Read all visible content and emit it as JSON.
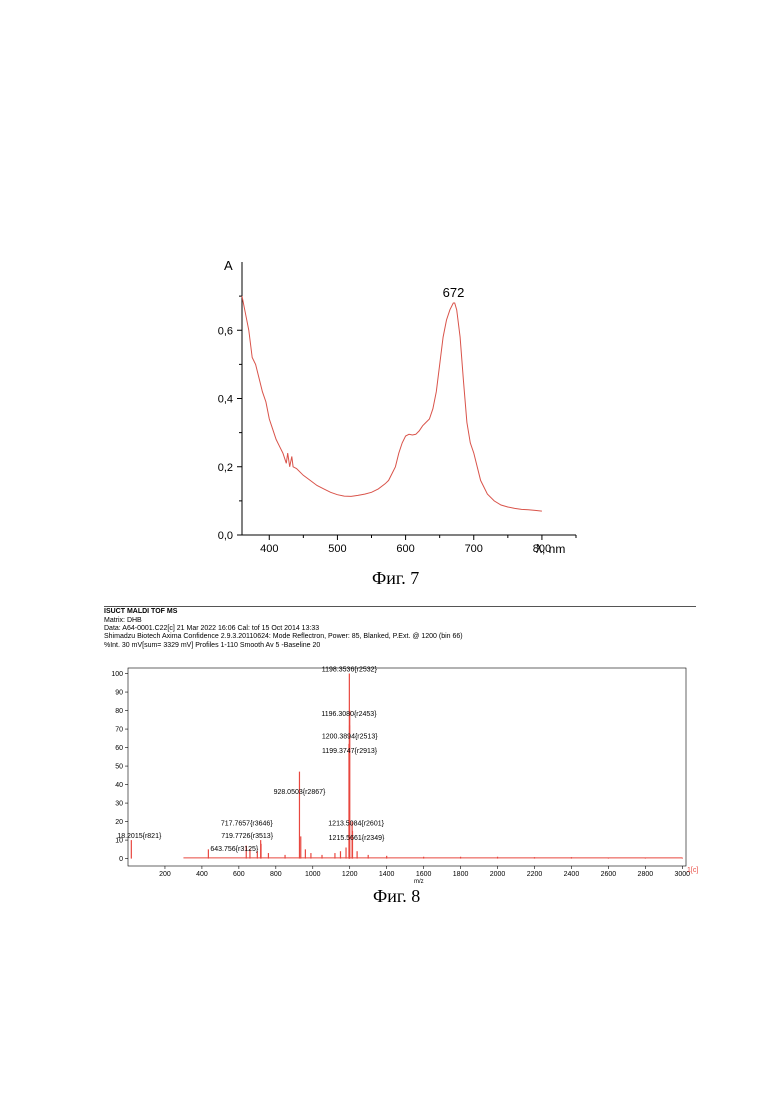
{
  "figures": {
    "fig7": {
      "caption": "Фиг. 7",
      "chart_data": {
        "type": "line",
        "ylabel": "A",
        "xlabel": "λ, nm",
        "xlim": [
          360,
          850
        ],
        "ylim": [
          0,
          0.8
        ],
        "x_ticks": [
          {
            "v": 400,
            "label": "400"
          },
          {
            "v": 500,
            "label": "500"
          },
          {
            "v": 600,
            "label": "600"
          },
          {
            "v": 700,
            "label": "700"
          },
          {
            "v": 800,
            "label": "800"
          }
        ],
        "y_ticks": [
          {
            "v": 0,
            "label": "0,0"
          },
          {
            "v": 0.2,
            "label": "0,2"
          },
          {
            "v": 0.4,
            "label": "0,4"
          },
          {
            "v": 0.6,
            "label": "0,6"
          }
        ],
        "annotations": [
          {
            "x": 672,
            "y": 0.68,
            "text": "672"
          }
        ],
        "line_color": "#d9534a",
        "series": [
          {
            "x": [
              360,
              365,
              370,
              375,
              380,
              385,
              390,
              395,
              400,
              405,
              410,
              415,
              420,
              425,
              427,
              430,
              433,
              435,
              440,
              450,
              460,
              470,
              480,
              490,
              500,
              510,
              520,
              530,
              540,
              550,
              560,
              570,
              575,
              580,
              585,
              590,
              595,
              600,
              605,
              610,
              615,
              620,
              625,
              630,
              635,
              640,
              645,
              650,
              655,
              660,
              665,
              670,
              672,
              675,
              680,
              685,
              690,
              695,
              700,
              705,
              710,
              720,
              730,
              740,
              750,
              760,
              770,
              780,
              790,
              800
            ],
            "y": [
              0.7,
              0.65,
              0.6,
              0.52,
              0.5,
              0.46,
              0.42,
              0.39,
              0.34,
              0.31,
              0.28,
              0.26,
              0.24,
              0.21,
              0.24,
              0.2,
              0.23,
              0.2,
              0.195,
              0.175,
              0.16,
              0.145,
              0.135,
              0.125,
              0.118,
              0.114,
              0.113,
              0.116,
              0.12,
              0.125,
              0.135,
              0.15,
              0.16,
              0.18,
              0.2,
              0.24,
              0.27,
              0.29,
              0.295,
              0.293,
              0.295,
              0.305,
              0.32,
              0.33,
              0.34,
              0.37,
              0.42,
              0.5,
              0.58,
              0.63,
              0.66,
              0.68,
              0.68,
              0.66,
              0.58,
              0.45,
              0.33,
              0.27,
              0.24,
              0.2,
              0.16,
              0.12,
              0.1,
              0.088,
              0.082,
              0.078,
              0.075,
              0.074,
              0.072,
              0.07
            ]
          }
        ]
      }
    },
    "fig8": {
      "caption": "Фиг. 8",
      "header": {
        "title": "ISUCT MALDI TOF MS",
        "matrix": "Matrix:  DHB",
        "data": "Data: A64-0001.C22[c] 21 Mar 2022 16:06 Cal: tof 15 Oct 2014 13:33",
        "instrument": "Shimadzu Biotech Axima Confidence 2.9.3.20110624: Mode Reflectron, Power: 85, Blanked, P.Ext. @ 1200 (bin 66)",
        "intensity": "%Int.              30 mV[sum= 3329 mV]  Profiles 1-110 Smooth Av 5 -Baseline 20"
      },
      "chart_data": {
        "type": "bar",
        "xlabel": "m/z",
        "xlim": [
          0,
          3020
        ],
        "ylim": [
          -4,
          103
        ],
        "x_ticks": [
          {
            "v": 200,
            "label": "200"
          },
          {
            "v": 400,
            "label": "400"
          },
          {
            "v": 600,
            "label": "600"
          },
          {
            "v": 800,
            "label": "800"
          },
          {
            "v": 1000,
            "label": "1000"
          },
          {
            "v": 1200,
            "label": "1200"
          },
          {
            "v": 1400,
            "label": "1400"
          },
          {
            "v": 1600,
            "label": "1600"
          },
          {
            "v": 1800,
            "label": "1800"
          },
          {
            "v": 2000,
            "label": "2000"
          },
          {
            "v": 2200,
            "label": "2200"
          },
          {
            "v": 2400,
            "label": "2400"
          },
          {
            "v": 2600,
            "label": "2600"
          },
          {
            "v": 2800,
            "label": "2800"
          },
          {
            "v": 3000,
            "label": "3000"
          }
        ],
        "x_end_label": "1[c]",
        "y_ticks": [
          {
            "v": 0,
            "label": "0"
          },
          {
            "v": 10,
            "label": "10"
          },
          {
            "v": 20,
            "label": "20"
          },
          {
            "v": 30,
            "label": "30"
          },
          {
            "v": 40,
            "label": "40"
          },
          {
            "v": 50,
            "label": "50"
          },
          {
            "v": 60,
            "label": "60"
          },
          {
            "v": 70,
            "label": "70"
          },
          {
            "v": 80,
            "label": "80"
          },
          {
            "v": 90,
            "label": "90"
          },
          {
            "v": 100,
            "label": "100"
          }
        ],
        "bar_color": "#e8473f",
        "peaks": [
          {
            "mz": 18,
            "value": 10
          },
          {
            "mz": 435,
            "value": 5
          },
          {
            "mz": 640,
            "value": 7
          },
          {
            "mz": 660,
            "value": 5
          },
          {
            "mz": 700,
            "value": 4
          },
          {
            "mz": 718,
            "value": 10
          },
          {
            "mz": 720,
            "value": 8
          },
          {
            "mz": 760,
            "value": 3
          },
          {
            "mz": 850,
            "value": 2
          },
          {
            "mz": 928,
            "value": 47
          },
          {
            "mz": 935,
            "value": 12
          },
          {
            "mz": 960,
            "value": 5
          },
          {
            "mz": 990,
            "value": 3
          },
          {
            "mz": 1050,
            "value": 2
          },
          {
            "mz": 1120,
            "value": 3
          },
          {
            "mz": 1150,
            "value": 4
          },
          {
            "mz": 1180,
            "value": 6
          },
          {
            "mz": 1196,
            "value": 62
          },
          {
            "mz": 1198,
            "value": 100
          },
          {
            "mz": 1199,
            "value": 72
          },
          {
            "mz": 1200,
            "value": 80
          },
          {
            "mz": 1213,
            "value": 20
          },
          {
            "mz": 1215,
            "value": 15
          },
          {
            "mz": 1240,
            "value": 4
          },
          {
            "mz": 1300,
            "value": 2
          },
          {
            "mz": 1400,
            "value": 1.5
          },
          {
            "mz": 1600,
            "value": 1
          },
          {
            "mz": 1800,
            "value": 1
          },
          {
            "mz": 2000,
            "value": 1
          },
          {
            "mz": 2200,
            "value": 0.8
          },
          {
            "mz": 2400,
            "value": 0.8
          },
          {
            "mz": 2600,
            "value": 0.6
          },
          {
            "mz": 2800,
            "value": 0.6
          },
          {
            "mz": 3000,
            "value": 0.5
          }
        ],
        "peak_labels": [
          {
            "text": "1198.3536{r2532}",
            "mz": 1198,
            "y": 101
          },
          {
            "text": "1196.3080{r2453}",
            "mz": 1196,
            "y": 77
          },
          {
            "text": "1200.3894{r2513}",
            "mz": 1200,
            "y": 65
          },
          {
            "text": "1199.3747{r2913}",
            "mz": 1199,
            "y": 57
          },
          {
            "text": "928.0503{r2867}",
            "mz": 928,
            "y": 35
          },
          {
            "text": "717.7657{r3646}",
            "mz": 718,
            "y": 18
          },
          {
            "text": "719.7726{r3513}",
            "mz": 720,
            "y": 11
          },
          {
            "text": "643.756{r3125}",
            "mz": 640,
            "y": 4
          },
          {
            "text": "18.2015{r821}",
            "mz": 18,
            "y": 11
          },
          {
            "text": "1213.5084{r2601}",
            "mz": 1213,
            "y": 18
          },
          {
            "text": "1215.5661{r2349}",
            "mz": 1215,
            "y": 10
          }
        ]
      }
    }
  }
}
